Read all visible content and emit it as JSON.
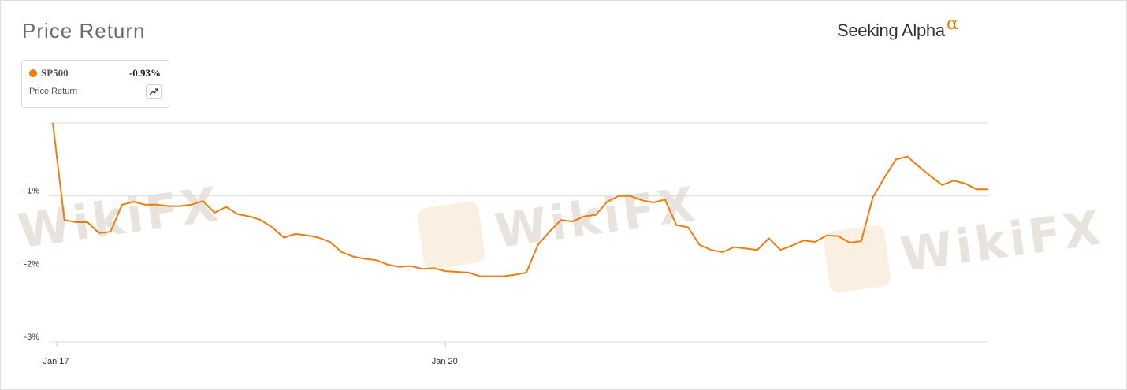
{
  "header": {
    "title": "Price Return",
    "brand": "Seeking Alpha",
    "brand_symbol": "α"
  },
  "legend": {
    "series_name": "SP500",
    "series_value": "-0.93%",
    "subtitle": "Price Return",
    "color": "#f07c10",
    "button_icon": "trend-line-icon"
  },
  "watermarks": [
    "WikiFX",
    "WikiFX",
    "WikiFX"
  ],
  "chart_data": {
    "type": "line",
    "title": "Price Return",
    "xlabel": "",
    "ylabel": "",
    "ylim": [
      -3.0,
      0.0
    ],
    "yticks": [
      {
        "value": -1,
        "label": "-1%"
      },
      {
        "value": -2,
        "label": "-2%"
      },
      {
        "value": -3,
        "label": "-3%"
      }
    ],
    "xticks": [
      {
        "index": 0,
        "label": "Jan 17"
      },
      {
        "index": 34,
        "label": "Jan 20"
      }
    ],
    "grid": true,
    "legend_position": "top-left",
    "series": [
      {
        "name": "SP500",
        "color": "#f07c10",
        "values": [
          0.0,
          -1.33,
          -1.36,
          -1.36,
          -1.51,
          -1.49,
          -1.12,
          -1.08,
          -1.12,
          -1.12,
          -1.14,
          -1.14,
          -1.12,
          -1.07,
          -1.23,
          -1.15,
          -1.25,
          -1.28,
          -1.33,
          -1.43,
          -1.57,
          -1.52,
          -1.54,
          -1.57,
          -1.63,
          -1.77,
          -1.83,
          -1.86,
          -1.88,
          -1.94,
          -1.97,
          -1.96,
          -2.0,
          -1.99,
          -2.03,
          -2.04,
          -2.05,
          -2.1,
          -2.1,
          -2.1,
          -2.08,
          -2.05,
          -1.67,
          -1.49,
          -1.33,
          -1.35,
          -1.28,
          -1.26,
          -1.08,
          -1.0,
          -1.0,
          -1.06,
          -1.09,
          -1.05,
          -1.4,
          -1.43,
          -1.67,
          -1.74,
          -1.77,
          -1.7,
          -1.72,
          -1.74,
          -1.58,
          -1.74,
          -1.68,
          -1.61,
          -1.63,
          -1.54,
          -1.55,
          -1.64,
          -1.62,
          -1.02,
          -0.75,
          -0.5,
          -0.46,
          -0.6,
          -0.73,
          -0.85,
          -0.79,
          -0.83,
          -0.91,
          -0.91
        ]
      }
    ]
  }
}
